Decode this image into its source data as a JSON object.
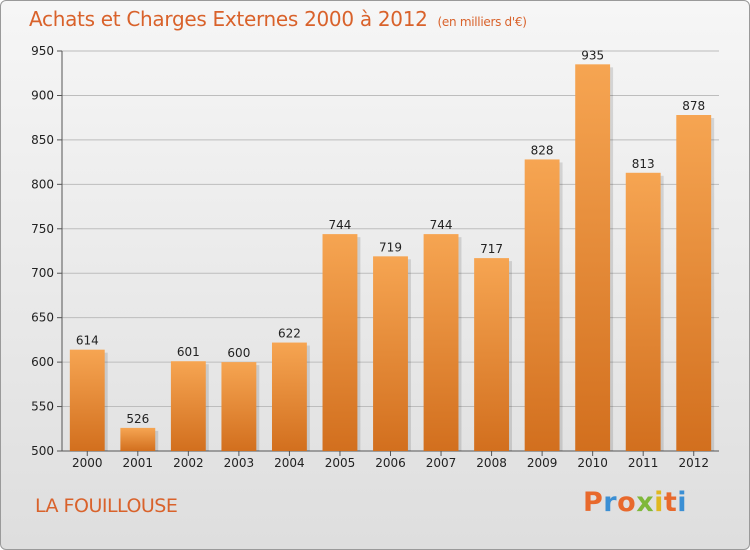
{
  "header": {
    "title": "Achats et Charges Externes 2000 à 2012",
    "subtitle": "(en milliers d'€)"
  },
  "footer": {
    "location": "LA FOUILLOUSE",
    "brand": "Proxiti",
    "brand_colors": [
      "#e8692c",
      "#3b8fd4",
      "#e8692c",
      "#7fb83a",
      "#e0b820",
      "#e8692c",
      "#3b8fd4"
    ]
  },
  "colors": {
    "bar_top": "#f6a552",
    "bar_bottom": "#d26f1e",
    "title": "#d9622b",
    "grid": "#bdbdbd"
  },
  "chart_data": {
    "type": "bar",
    "title": "Achats et Charges Externes 2000 à 2012",
    "subtitle": "(en milliers d'€)",
    "xlabel": "",
    "ylabel": "",
    "categories": [
      "2000",
      "2001",
      "2002",
      "2003",
      "2004",
      "2005",
      "2006",
      "2007",
      "2008",
      "2009",
      "2010",
      "2011",
      "2012"
    ],
    "values": [
      614,
      526,
      601,
      600,
      622,
      744,
      719,
      744,
      717,
      828,
      935,
      813,
      878
    ],
    "ylim": [
      500,
      950
    ],
    "yticks": [
      500,
      550,
      600,
      650,
      700,
      750,
      800,
      850,
      900,
      950
    ],
    "grid": true,
    "legend": "none"
  }
}
